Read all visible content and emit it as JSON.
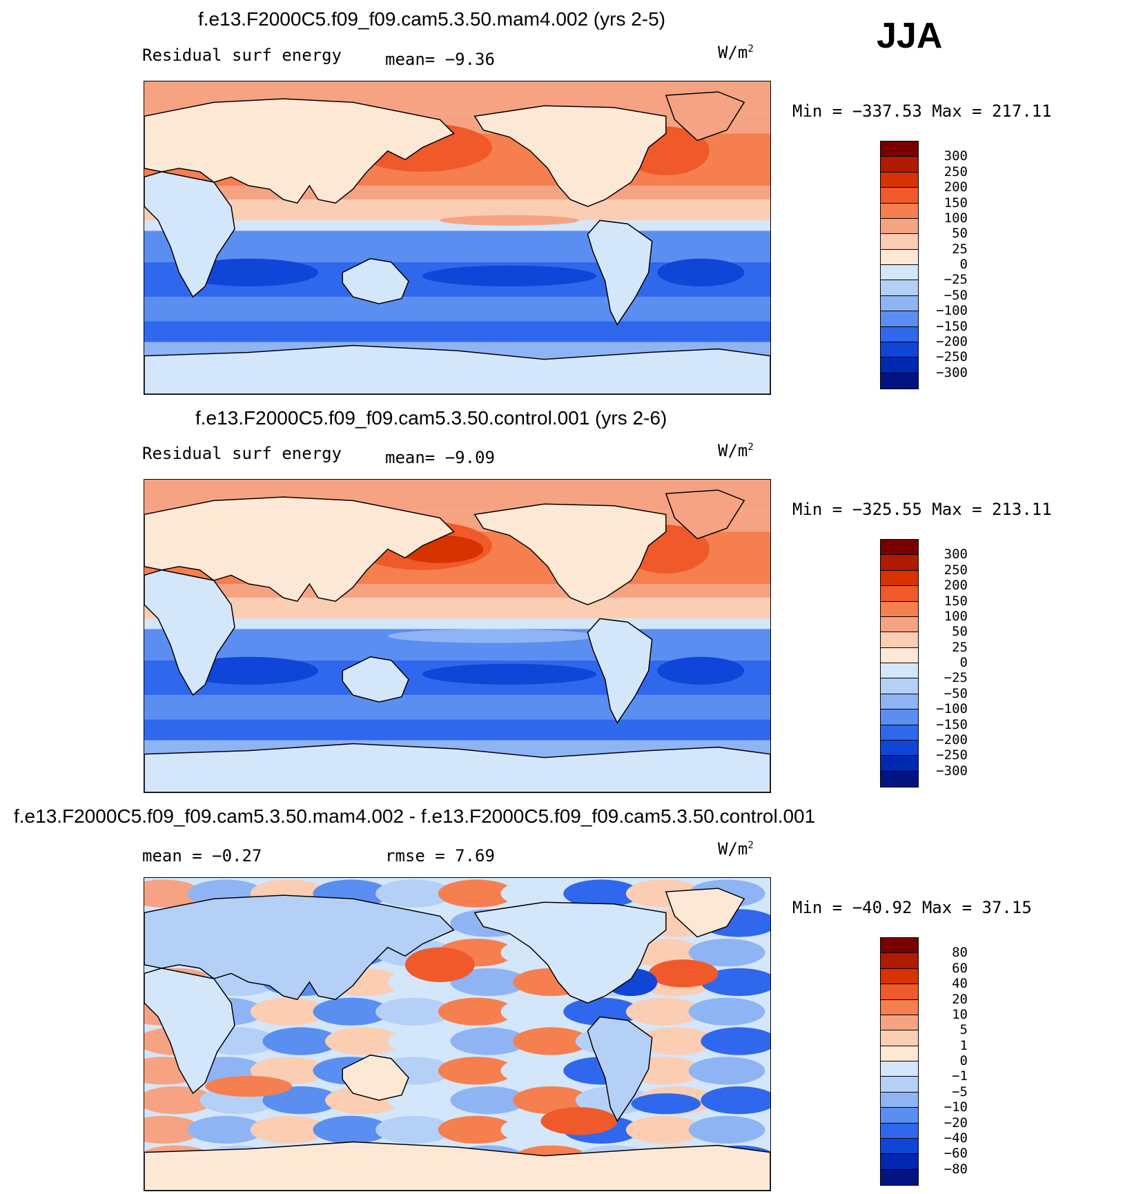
{
  "season": "JJA",
  "panels": [
    {
      "title": "f.e13.F2000C5.f09_f09.cam5.3.50.mam4.002 (yrs 2-5)",
      "left_label": "Residual surf energy",
      "mid_label": "mean=   −9.36",
      "units": "W/m",
      "units_sup": "2",
      "minmax": "Min = −337.53 Max = 217.11",
      "mode": "a"
    },
    {
      "title": "f.e13.F2000C5.f09_f09.cam5.3.50.control.001 (yrs 2-6)",
      "left_label": "Residual surf energy",
      "mid_label": "mean=   −9.09",
      "units": "W/m",
      "units_sup": "2",
      "minmax": "Min = −325.55 Max = 213.11",
      "mode": "b"
    },
    {
      "title": "f.e13.F2000C5.f09_f09.cam5.3.50.mam4.002 - f.e13.F2000C5.f09_f09.cam5.3.50.control.001",
      "left_label": "mean =   −0.27",
      "mid_label": "rmse =     7.69",
      "units": "W/m",
      "units_sup": "2",
      "minmax": "Min = −40.92 Max =  37.15",
      "mode": "d"
    }
  ],
  "colorbar_abs": {
    "colors": [
      "#7a0000",
      "#b01b00",
      "#d63300",
      "#f0592a",
      "#f57f4f",
      "#f6a383",
      "#fbcdb3",
      "#fde8d6",
      "#d4e6fa",
      "#b4d0f7",
      "#8fb4f4",
      "#5b8ef1",
      "#2f68ec",
      "#0f46d8",
      "#0028b0",
      "#001580"
    ],
    "labels": [
      "300",
      "250",
      "200",
      "150",
      "100",
      "50",
      "25",
      "0",
      "−25",
      "−50",
      "−100",
      "−150",
      "−200",
      "−250",
      "−300"
    ]
  },
  "colorbar_diff": {
    "colors": [
      "#7a0000",
      "#b01b00",
      "#d63300",
      "#f0592a",
      "#f57f4f",
      "#f6a383",
      "#fbcdb3",
      "#fde8d6",
      "#d4e6fa",
      "#b4d0f7",
      "#8fb4f4",
      "#5b8ef1",
      "#2f68ec",
      "#0f46d8",
      "#0028b0",
      "#001580"
    ],
    "labels": [
      "80",
      "60",
      "40",
      "20",
      "10",
      "5",
      "1",
      "0",
      "−1",
      "−5",
      "−10",
      "−20",
      "−40",
      "−60",
      "−80"
    ]
  },
  "chart_data": [
    {
      "type": "heatmap",
      "title": "f.e13.F2000C5.f09_f09.cam5.3.50.mam4.002 (yrs 2-5)",
      "season": "JJA",
      "variable": "Residual surf energy",
      "units": "W/m2",
      "mean": -9.36,
      "min": -337.53,
      "max": 217.11,
      "contour_levels": [
        -300,
        -250,
        -200,
        -150,
        -100,
        -50,
        -25,
        0,
        25,
        50,
        100,
        150,
        200,
        250,
        300
      ]
    },
    {
      "type": "heatmap",
      "title": "f.e13.F2000C5.f09_f09.cam5.3.50.control.001 (yrs 2-6)",
      "season": "JJA",
      "variable": "Residual surf energy",
      "units": "W/m2",
      "mean": -9.09,
      "min": -325.55,
      "max": 213.11,
      "contour_levels": [
        -300,
        -250,
        -200,
        -150,
        -100,
        -50,
        -25,
        0,
        25,
        50,
        100,
        150,
        200,
        250,
        300
      ]
    },
    {
      "type": "heatmap",
      "title": "f.e13.F2000C5.f09_f09.cam5.3.50.mam4.002 - f.e13.F2000C5.f09_f09.cam5.3.50.control.001",
      "season": "JJA",
      "units": "W/m2",
      "mean": -0.27,
      "rmse": 7.69,
      "min": -40.92,
      "max": 37.15,
      "contour_levels": [
        -80,
        -60,
        -40,
        -20,
        -10,
        -5,
        -1,
        0,
        1,
        5,
        10,
        20,
        40,
        60,
        80
      ]
    }
  ]
}
